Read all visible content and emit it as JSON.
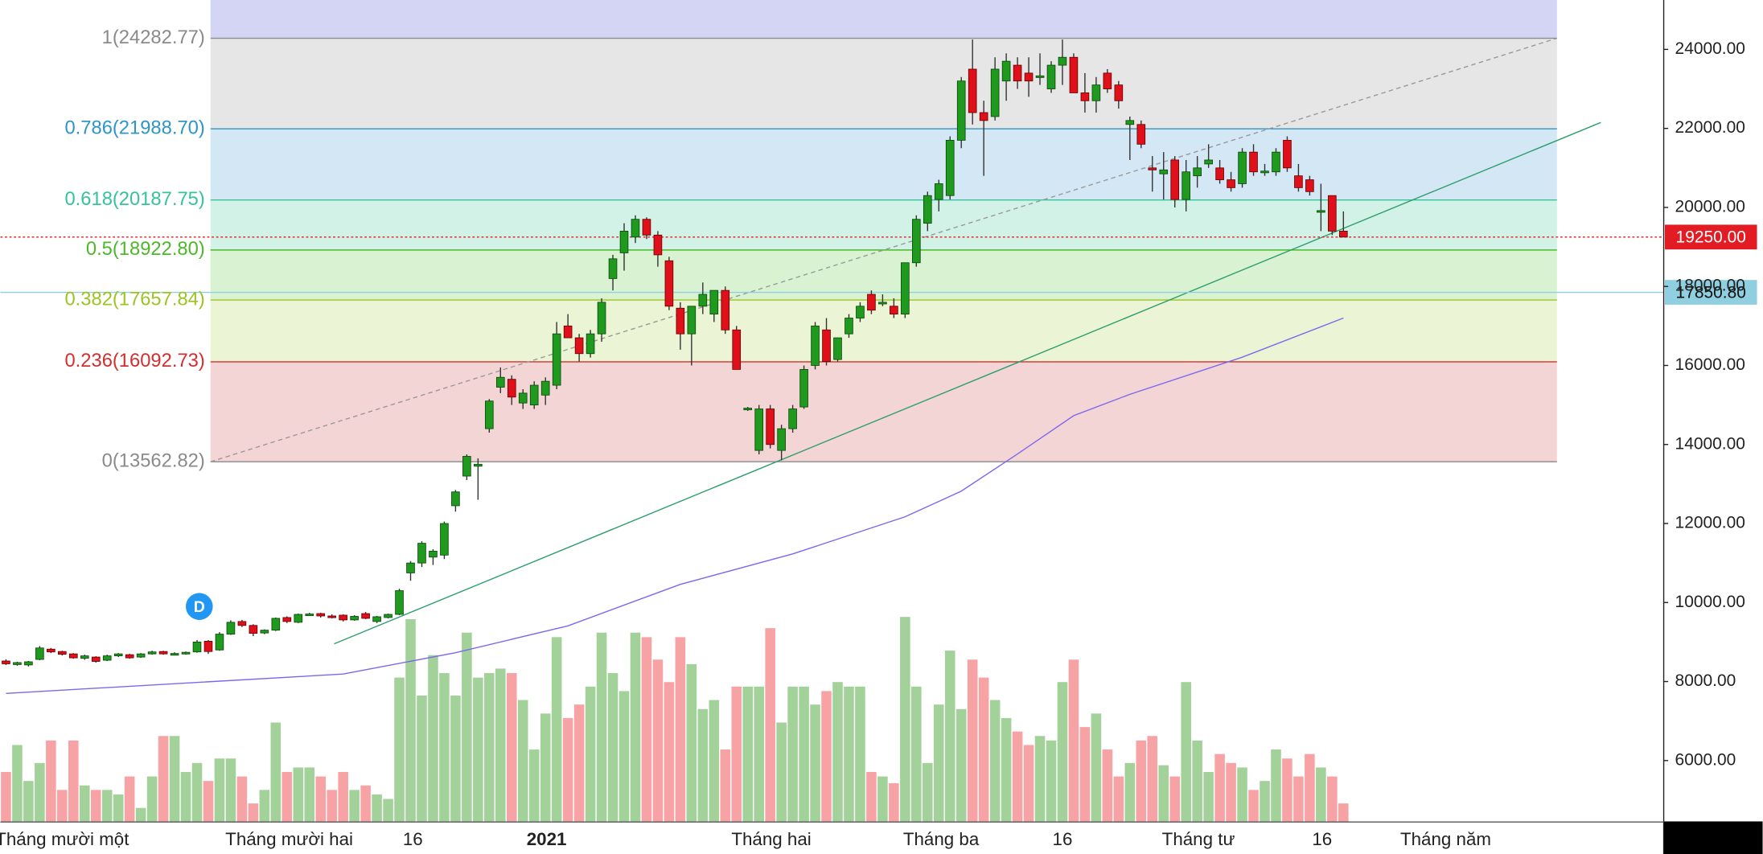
{
  "chart_data": {
    "type": "candlestick",
    "xlim": [
      -0.5,
      147.5
    ],
    "ylim": [
      4460,
      25250
    ],
    "yticks": [
      {
        "value": 6000,
        "label": "6000.00"
      },
      {
        "value": 8000,
        "label": "8000.00"
      },
      {
        "value": 10000,
        "label": "10000.00"
      },
      {
        "value": 12000,
        "label": "12000.00"
      },
      {
        "value": 14000,
        "label": "14000.00"
      },
      {
        "value": 16000,
        "label": "16000.00"
      },
      {
        "value": 18000,
        "label": "18000.00"
      },
      {
        "value": 20000,
        "label": "20000.00"
      },
      {
        "value": 22000,
        "label": "22000.00"
      },
      {
        "value": 24000,
        "label": "24000.00"
      }
    ],
    "xticks": [
      {
        "value": 5.0,
        "label": "Tháng mười một"
      },
      {
        "value": 25.2,
        "label": "Tháng mười hai"
      },
      {
        "value": 36.2,
        "label": "16"
      },
      {
        "value": 48.1,
        "label": "2021",
        "bold": true
      },
      {
        "value": 68.1,
        "label": "Tháng hai"
      },
      {
        "value": 83.2,
        "label": "Tháng ba"
      },
      {
        "value": 94.0,
        "label": "16"
      },
      {
        "value": 106.1,
        "label": "Tháng tư"
      },
      {
        "value": 117.1,
        "label": "16"
      },
      {
        "value": 128.1,
        "label": "Tháng năm"
      }
    ],
    "up_color": "#1f9a1f",
    "down_color": "#e0101a",
    "volume_up_color": "#a3d19a",
    "volume_down_color": "#f7a3a6",
    "volume_lim": [
      0,
      100
    ],
    "ohlc": [
      [
        8520,
        8560,
        8420,
        8450
      ],
      [
        8430,
        8500,
        8400,
        8480
      ],
      [
        8420,
        8520,
        8380,
        8500
      ],
      [
        8560,
        8900,
        8540,
        8850
      ],
      [
        8820,
        8850,
        8720,
        8750
      ],
      [
        8760,
        8780,
        8660,
        8690
      ],
      [
        8700,
        8720,
        8580,
        8600
      ],
      [
        8590,
        8680,
        8550,
        8650
      ],
      [
        8620,
        8640,
        8480,
        8510
      ],
      [
        8540,
        8680,
        8520,
        8650
      ],
      [
        8650,
        8720,
        8620,
        8700
      ],
      [
        8680,
        8700,
        8580,
        8600
      ],
      [
        8620,
        8720,
        8600,
        8700
      ],
      [
        8700,
        8780,
        8680,
        8750
      ],
      [
        8760,
        8780,
        8680,
        8700
      ],
      [
        8700,
        8740,
        8660,
        8710
      ],
      [
        8700,
        8760,
        8680,
        8740
      ],
      [
        8750,
        9050,
        8730,
        9000
      ],
      [
        9020,
        9050,
        8700,
        8760
      ],
      [
        8800,
        9250,
        8780,
        9200
      ],
      [
        9200,
        9550,
        9180,
        9500
      ],
      [
        9520,
        9560,
        9380,
        9420
      ],
      [
        9420,
        9450,
        9150,
        9220
      ],
      [
        9230,
        9320,
        9200,
        9300
      ],
      [
        9300,
        9620,
        9280,
        9600
      ],
      [
        9620,
        9650,
        9480,
        9520
      ],
      [
        9500,
        9720,
        9480,
        9700
      ],
      [
        9700,
        9740,
        9660,
        9710
      ],
      [
        9720,
        9740,
        9620,
        9660
      ],
      [
        9660,
        9700,
        9600,
        9650
      ],
      [
        9680,
        9700,
        9520,
        9560
      ],
      [
        9560,
        9680,
        9540,
        9650
      ],
      [
        9720,
        9760,
        9580,
        9600
      ],
      [
        9520,
        9660,
        9480,
        9640
      ],
      [
        9620,
        9720,
        9600,
        9700
      ],
      [
        9700,
        10350,
        9680,
        10300
      ],
      [
        10750,
        11050,
        10550,
        11000
      ],
      [
        11000,
        11550,
        10900,
        11500
      ],
      [
        11150,
        11350,
        10950,
        11300
      ],
      [
        11200,
        12050,
        11100,
        12000
      ],
      [
        12450,
        12850,
        12300,
        12800
      ],
      [
        13200,
        13750,
        13100,
        13700
      ],
      [
        13450,
        13650,
        12600,
        13500
      ],
      [
        14400,
        15150,
        14300,
        15100
      ],
      [
        15450,
        15950,
        15300,
        15700
      ],
      [
        15650,
        15750,
        15000,
        15200
      ],
      [
        15050,
        15400,
        14900,
        15300
      ],
      [
        15000,
        15600,
        14900,
        15500
      ],
      [
        15250,
        15700,
        15000,
        15600
      ],
      [
        15500,
        17100,
        15400,
        16800
      ],
      [
        17000,
        17300,
        16700,
        16700
      ],
      [
        16700,
        16800,
        16100,
        16300
      ],
      [
        16300,
        16900,
        16200,
        16800
      ],
      [
        16800,
        17700,
        16600,
        17600
      ],
      [
        18200,
        18800,
        17900,
        18700
      ],
      [
        18850,
        19600,
        18400,
        19400
      ],
      [
        19250,
        19800,
        19100,
        19700
      ],
      [
        19700,
        19750,
        19200,
        19300
      ],
      [
        19300,
        19400,
        18500,
        18800
      ],
      [
        18650,
        18750,
        17400,
        17500
      ],
      [
        17450,
        17600,
        16400,
        16800
      ],
      [
        16800,
        17500,
        16000,
        17500
      ],
      [
        17500,
        18100,
        17300,
        17800
      ],
      [
        17300,
        17900,
        17100,
        17900
      ],
      [
        17900,
        18000,
        16800,
        16900
      ],
      [
        16900,
        17000,
        15900,
        15900
      ],
      [
        14900,
        14950,
        14850,
        14920
      ],
      [
        13850,
        15000,
        13750,
        14900
      ],
      [
        14900,
        15000,
        13900,
        14000
      ],
      [
        13850,
        14500,
        13600,
        14400
      ],
      [
        14400,
        15000,
        14300,
        14900
      ],
      [
        14950,
        16000,
        14900,
        15900
      ],
      [
        16000,
        17100,
        15900,
        17000
      ],
      [
        16900,
        17200,
        16000,
        16100
      ],
      [
        16150,
        16700,
        16100,
        16700
      ],
      [
        16800,
        17300,
        16700,
        17200
      ],
      [
        17200,
        17600,
        17100,
        17500
      ],
      [
        17800,
        17900,
        17300,
        17400
      ],
      [
        17600,
        17800,
        17500,
        17600
      ],
      [
        17500,
        17700,
        17200,
        17300
      ],
      [
        17300,
        18600,
        17200,
        18600
      ],
      [
        18600,
        19800,
        18500,
        19700
      ],
      [
        19600,
        20400,
        19400,
        20300
      ],
      [
        20200,
        20700,
        19900,
        20600
      ],
      [
        20300,
        21800,
        20200,
        21700
      ],
      [
        21700,
        23300,
        21500,
        23200
      ],
      [
        23500,
        24250,
        22100,
        22400
      ],
      [
        22400,
        22700,
        20800,
        22200
      ],
      [
        22300,
        23800,
        22200,
        23500
      ],
      [
        23200,
        23900,
        22700,
        23700
      ],
      [
        23600,
        23800,
        23000,
        23200
      ],
      [
        23400,
        23800,
        22800,
        23200
      ],
      [
        23300,
        23900,
        23100,
        23330
      ],
      [
        23000,
        23700,
        22900,
        23600
      ],
      [
        23600,
        24250,
        23100,
        23800
      ],
      [
        23800,
        23900,
        22900,
        22900
      ],
      [
        22900,
        23400,
        22400,
        22700
      ],
      [
        22700,
        23300,
        22400,
        23100
      ],
      [
        23400,
        23500,
        22900,
        23000
      ],
      [
        23100,
        23200,
        22500,
        22700
      ],
      [
        22100,
        22300,
        21200,
        22200
      ],
      [
        22100,
        22200,
        21500,
        21600
      ],
      [
        21000,
        21300,
        20400,
        20950
      ],
      [
        20850,
        21400,
        20200,
        20950
      ],
      [
        21200,
        21300,
        20000,
        20200
      ],
      [
        20200,
        21200,
        19900,
        20900
      ],
      [
        20800,
        21300,
        20500,
        21000
      ],
      [
        21100,
        21600,
        21000,
        21200
      ],
      [
        21000,
        21200,
        20600,
        20700
      ],
      [
        20700,
        20900,
        20400,
        20500
      ],
      [
        20600,
        21500,
        20500,
        21400
      ],
      [
        21400,
        21600,
        20800,
        20900
      ],
      [
        20900,
        21100,
        20800,
        20920
      ],
      [
        20900,
        21500,
        20800,
        21400
      ],
      [
        21700,
        21800,
        20900,
        21000
      ],
      [
        20800,
        21100,
        20400,
        20500
      ],
      [
        20700,
        20800,
        20300,
        20400
      ],
      [
        19900,
        20600,
        19400,
        19920
      ],
      [
        20300,
        20300,
        19300,
        19400
      ],
      [
        19400,
        19900,
        19250,
        19250
      ]
    ],
    "volume": [
      22,
      34,
      18,
      26,
      36,
      14,
      36,
      16,
      14,
      14,
      12,
      20,
      6,
      20,
      38,
      38,
      22,
      26,
      18,
      28,
      28,
      20,
      8,
      14,
      44,
      22,
      24,
      24,
      20,
      14,
      22,
      14,
      16,
      12,
      10,
      64,
      90,
      56,
      74,
      66,
      56,
      84,
      64,
      66,
      68,
      66,
      54,
      32,
      48,
      82,
      46,
      52,
      60,
      84,
      66,
      58,
      84,
      82,
      72,
      62,
      82,
      70,
      50,
      54,
      32,
      60,
      60,
      60,
      86,
      44,
      60,
      60,
      52,
      58,
      62,
      60,
      60,
      22,
      20,
      17,
      91,
      60,
      26,
      52,
      76,
      50,
      72,
      64,
      54,
      46,
      40,
      34,
      38,
      36,
      62,
      72,
      42,
      48,
      32,
      20,
      26,
      36,
      38,
      25,
      20,
      62,
      36,
      22,
      30,
      26,
      24,
      14,
      18,
      32,
      28,
      20,
      30,
      24,
      20,
      8
    ],
    "moving_average": {
      "x": [
        0,
        30,
        40,
        50,
        60,
        70,
        80,
        85,
        90,
        95,
        100,
        110,
        119
      ],
      "values": [
        7700,
        8190,
        8730,
        9410,
        10460,
        11230,
        12170,
        12820,
        13760,
        14730,
        15270,
        16210,
        17200
      ],
      "color": "#7b68ee"
    },
    "fibonacci": {
      "x_range": [
        18.2,
        138
      ],
      "top_band": "#d4d4f4",
      "levels": [
        {
          "value": 24282.77,
          "label": "1(24282.77)",
          "color": "#8a8a8a",
          "band": "#e6e6e6"
        },
        {
          "value": 21988.7,
          "label": "0.786(21988.70)",
          "color": "#2f95c8",
          "band": "#d4e7f5"
        },
        {
          "value": 20187.75,
          "label": "0.618(20187.75)",
          "color": "#35c49a",
          "band": "#d3f2e7"
        },
        {
          "value": 18922.8,
          "label": "0.5(18922.80)",
          "color": "#4cb82a",
          "band": "#d9f2d2"
        },
        {
          "value": 17657.84,
          "label": "0.382(17657.84)",
          "color": "#9cc423",
          "band": "#ebf5d5"
        },
        {
          "value": 16092.73,
          "label": "0.236(16092.73)",
          "color": "#d42f2f",
          "band": "#f4d5d5"
        },
        {
          "value": 13562.82,
          "label": "0(13562.82)",
          "color": "#8a8a8a"
        }
      ]
    },
    "trendlines": [
      {
        "x": [
          29.2,
          141.9
        ],
        "y": [
          8955,
          22150
        ],
        "color": "#2e9e6e",
        "dash": false
      },
      {
        "x": [
          18.2,
          138
        ],
        "y": [
          13562.82,
          24282.77
        ],
        "color": "#999999",
        "dash": true
      }
    ],
    "price_lines": [
      {
        "value": 19250,
        "label": "19250.00",
        "color": "#e31b23",
        "text_color": "#ffffff",
        "dash": true
      },
      {
        "value": 17850.8,
        "label": "17850.80",
        "color": "#8fcfe0",
        "text_color": "#111111",
        "dash": false
      }
    ],
    "marker": {
      "label": "D",
      "x": 17.2,
      "y": 9900,
      "color": "#2196f3"
    }
  }
}
